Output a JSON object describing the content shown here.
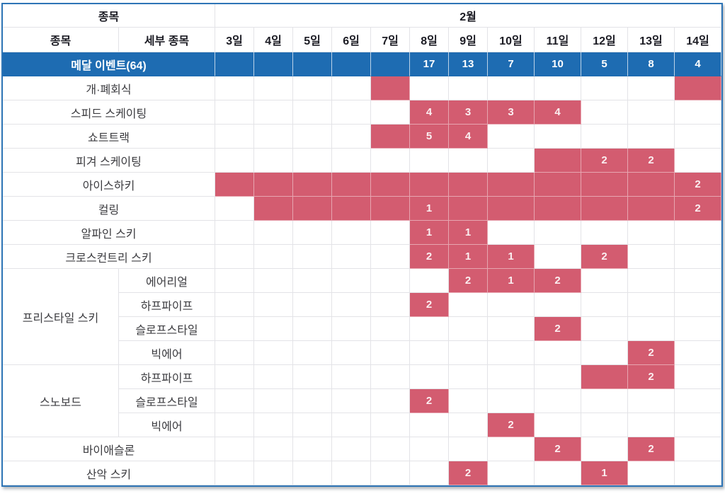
{
  "colors": {
    "total_row_blue": "#1e6cb2",
    "scheduled_pink": "#d35c70",
    "frame_blue": "#2e75b6",
    "grid_line": "#e3e3e7",
    "header_text": "#1c1c24",
    "event_text": "#3c3c40"
  },
  "chart_data": {
    "type": "table",
    "header": {
      "category_group_label": "종목",
      "month_label": "2월",
      "category_col_label": "종목",
      "subcategory_col_label": "세부 종목",
      "day_labels": [
        "3일",
        "4일",
        "5일",
        "6일",
        "7일",
        "8일",
        "9일",
        "10일",
        "11일",
        "12일",
        "13일",
        "14일"
      ]
    },
    "total_row": {
      "label": "메달 이벤트(64)",
      "total": 64,
      "daily_counts": [
        null,
        null,
        null,
        null,
        null,
        17,
        13,
        7,
        10,
        5,
        8,
        4
      ]
    },
    "rows": [
      {
        "event": "개·폐회식",
        "span_both_cols": true,
        "cells": [
          null,
          null,
          null,
          null,
          "",
          null,
          null,
          null,
          null,
          null,
          null,
          ""
        ]
      },
      {
        "event": "스피드 스케이팅",
        "span_both_cols": true,
        "cells": [
          null,
          null,
          null,
          null,
          null,
          "4",
          "3",
          "3",
          "4",
          null,
          null,
          null
        ]
      },
      {
        "event": "쇼트트랙",
        "span_both_cols": true,
        "cells": [
          null,
          null,
          null,
          null,
          "",
          "5",
          "4",
          null,
          null,
          null,
          null,
          null
        ]
      },
      {
        "event": "피겨 스케이팅",
        "span_both_cols": true,
        "cells": [
          null,
          null,
          null,
          null,
          null,
          null,
          null,
          null,
          "",
          "2",
          "2",
          null
        ]
      },
      {
        "event": "아이스하키",
        "span_both_cols": true,
        "cells": [
          "",
          "",
          "",
          "",
          "",
          "",
          "",
          "",
          "",
          "",
          "",
          "2"
        ]
      },
      {
        "event": "컬링",
        "span_both_cols": true,
        "cells": [
          null,
          "",
          "",
          "",
          "",
          "1",
          "",
          "",
          "",
          "",
          "",
          "2"
        ]
      },
      {
        "event": "알파인 스키",
        "span_both_cols": true,
        "cells": [
          null,
          null,
          null,
          null,
          null,
          "1",
          "1",
          null,
          null,
          null,
          null,
          null
        ]
      },
      {
        "event": "크로스컨트리 스키",
        "span_both_cols": true,
        "cells": [
          null,
          null,
          null,
          null,
          null,
          "2",
          "1",
          "1",
          null,
          "2",
          null,
          null
        ]
      },
      {
        "group": "프리스타일 스키",
        "group_span": 4,
        "event": "에어리얼",
        "cells": [
          null,
          null,
          null,
          null,
          null,
          null,
          "2",
          "1",
          "2",
          null,
          null,
          null
        ]
      },
      {
        "event": "하프파이프",
        "cells": [
          null,
          null,
          null,
          null,
          null,
          "2",
          null,
          null,
          null,
          null,
          null,
          null
        ]
      },
      {
        "event": "슬로프스타일",
        "cells": [
          null,
          null,
          null,
          null,
          null,
          null,
          null,
          null,
          "2",
          null,
          null,
          null
        ]
      },
      {
        "event": "빅에어",
        "cells": [
          null,
          null,
          null,
          null,
          null,
          null,
          null,
          null,
          null,
          null,
          "2",
          null
        ]
      },
      {
        "group": "스노보드",
        "group_span": 3,
        "event": "하프파이프",
        "cells": [
          null,
          null,
          null,
          null,
          null,
          null,
          null,
          null,
          null,
          "",
          "2",
          null
        ]
      },
      {
        "event": "슬로프스타일",
        "cells": [
          null,
          null,
          null,
          null,
          null,
          "2",
          null,
          null,
          null,
          null,
          null,
          null
        ]
      },
      {
        "event": "빅에어",
        "cells": [
          null,
          null,
          null,
          null,
          null,
          null,
          null,
          "2",
          null,
          null,
          null,
          null
        ]
      },
      {
        "event": "바이애슬론",
        "span_both_cols": true,
        "cells": [
          null,
          null,
          null,
          null,
          null,
          null,
          null,
          null,
          "2",
          null,
          "2",
          null
        ]
      },
      {
        "event": "산악 스키",
        "span_both_cols": true,
        "cells": [
          null,
          null,
          null,
          null,
          null,
          null,
          "2",
          null,
          null,
          "1",
          null,
          null
        ]
      }
    ]
  }
}
